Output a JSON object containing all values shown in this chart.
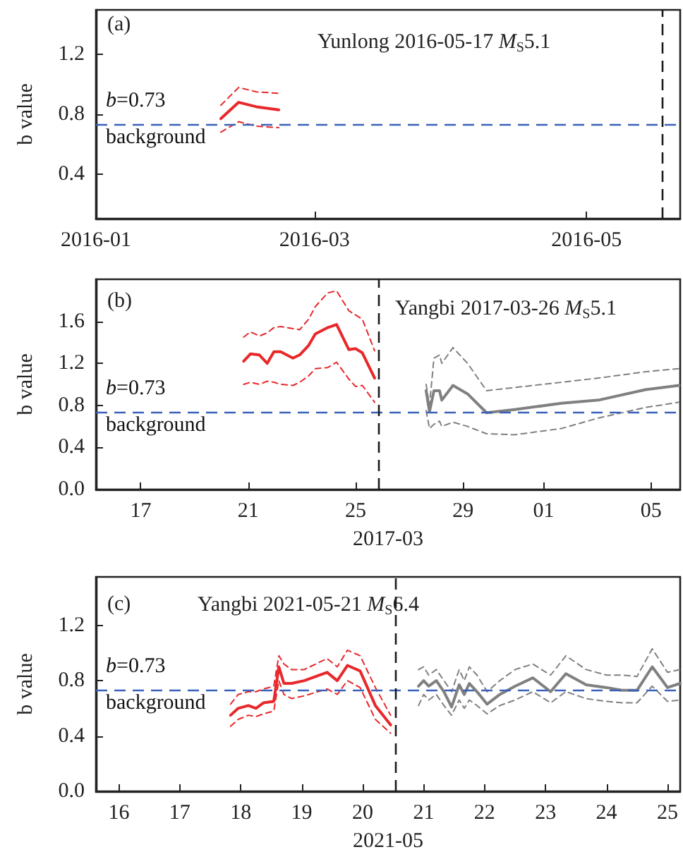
{
  "chart_data": [
    {
      "type": "line",
      "title": "Yunlong 2016-05-17 M$_{S}$5.1",
      "ylabel": "b value",
      "annotations": [
        "(a)"
      ],
      "xlim": [
        "2016-01-12",
        "2016-05-22"
      ],
      "xticks": [
        {
          "value": "2016-01-12",
          "label": "2016-01"
        },
        {
          "value": "2016-03-01",
          "label": "2016-03"
        },
        {
          "value": "2016-05-01",
          "label": "2016-05"
        }
      ],
      "ylim": [
        0.1,
        1.5
      ],
      "yticks": [
        0.4,
        0.8,
        1.2
      ],
      "marker": "none",
      "line_style": "solid",
      "grid": false,
      "series": [
        {
          "color": "#e8282b",
          "x": [
            "2016-02-09",
            "2016-02-13",
            "2016-02-17",
            "2016-02-22"
          ],
          "values": [
            0.77,
            0.88,
            0.85,
            0.83
          ]
        },
        {
          "color": "#e8282b",
          "line_style": "dashed",
          "x": [
            "2016-02-09",
            "2016-02-13",
            "2016-02-17",
            "2016-02-22"
          ],
          "values": [
            0.86,
            0.98,
            0.95,
            0.94
          ]
        },
        {
          "color": "#e8282b",
          "line_style": "dashed",
          "x": [
            "2016-02-09",
            "2016-02-13",
            "2016-02-17",
            "2016-02-22"
          ],
          "values": [
            0.68,
            0.75,
            0.72,
            0.71
          ]
        }
      ],
      "ref_lines": [
        {
          "axis": "y",
          "value": 0.73,
          "label": "b=0.73\nbackground",
          "color": "#3a62b8",
          "line_style": "dashed"
        },
        {
          "axis": "x",
          "value": "2016-05-18",
          "color": "#1a1a1a",
          "line_style": "dashed"
        }
      ]
    },
    {
      "type": "line",
      "title": "Yangbi 2017-03-26 M$_{S}$5.1",
      "xlabel": "2017-03",
      "ylabel": "b value",
      "annotations": [
        "(b)"
      ],
      "xlim": [
        "2017-03-15T08:00",
        "2017-04-06T02:00"
      ],
      "xticks": [
        {
          "value": "2017-03-17",
          "label": "17"
        },
        {
          "value": "2017-03-21",
          "label": "21"
        },
        {
          "value": "2017-03-25",
          "label": "25"
        },
        {
          "value": "2017-03-29",
          "label": "29"
        },
        {
          "value": "2017-04-01",
          "label": "01"
        },
        {
          "value": "2017-04-05",
          "label": "05"
        }
      ],
      "ylim": [
        0,
        2.0
      ],
      "yticks": [
        {
          "value": 0,
          "label": "0.0"
        },
        0.4,
        0.8,
        1.2,
        1.6
      ],
      "marker": "none",
      "line_style": "solid",
      "grid": false,
      "series": [
        {
          "color": "#e8282b",
          "x": [
            "2017-03-20T20:00",
            "2017-03-21T02:00",
            "2017-03-21T10:00",
            "2017-03-21T17:00",
            "2017-03-21T23:00",
            "2017-03-22T05:00",
            "2017-03-22T16:00",
            "2017-03-22T22:00",
            "2017-03-23T06:00",
            "2017-03-23T12:00",
            "2017-03-23T23:00",
            "2017-03-24T07:00",
            "2017-03-24T18:00",
            "2017-03-25T00:00",
            "2017-03-25T06:00",
            "2017-03-25T17:00"
          ],
          "values": [
            1.22,
            1.29,
            1.28,
            1.2,
            1.31,
            1.31,
            1.25,
            1.28,
            1.37,
            1.48,
            1.54,
            1.57,
            1.33,
            1.34,
            1.3,
            1.06
          ]
        },
        {
          "color": "#e8282b",
          "line_style": "dashed",
          "x": [
            "2017-03-20T20:00",
            "2017-03-21T02:00",
            "2017-03-21T10:00",
            "2017-03-21T17:00",
            "2017-03-21T23:00",
            "2017-03-22T05:00",
            "2017-03-22T16:00",
            "2017-03-22T22:00",
            "2017-03-23T06:00",
            "2017-03-23T12:00",
            "2017-03-23T23:00",
            "2017-03-24T07:00",
            "2017-03-24T18:00",
            "2017-03-25T00:00",
            "2017-03-25T06:00",
            "2017-03-25T17:00"
          ],
          "values": [
            1.45,
            1.5,
            1.46,
            1.49,
            1.54,
            1.55,
            1.53,
            1.52,
            1.62,
            1.74,
            1.87,
            1.89,
            1.7,
            1.66,
            1.62,
            1.32
          ]
        },
        {
          "color": "#e8282b",
          "line_style": "dashed",
          "x": [
            "2017-03-20T20:00",
            "2017-03-21T02:00",
            "2017-03-21T10:00",
            "2017-03-21T17:00",
            "2017-03-21T23:00",
            "2017-03-22T05:00",
            "2017-03-22T16:00",
            "2017-03-22T22:00",
            "2017-03-23T06:00",
            "2017-03-23T12:00",
            "2017-03-23T23:00",
            "2017-03-24T07:00",
            "2017-03-24T18:00",
            "2017-03-25T00:00",
            "2017-03-25T06:00",
            "2017-03-25T17:00"
          ],
          "values": [
            1.0,
            1.02,
            1.0,
            1.03,
            1.02,
            1.0,
            0.99,
            1.02,
            1.08,
            1.15,
            1.16,
            1.21,
            1.05,
            0.98,
            0.99,
            0.83
          ]
        },
        {
          "color": "#808080",
          "x": [
            "2017-03-27T15:00",
            "2017-03-27T18:00",
            "2017-03-27T22:00",
            "2017-03-28T03:00",
            "2017-03-28T05:00",
            "2017-03-28T15:00",
            "2017-03-29T04:00",
            "2017-03-29T21:00",
            "2017-03-30T22:00",
            "2017-04-01T16:00",
            "2017-04-03T01:00",
            "2017-04-04T19:00",
            "2017-04-06T01:00"
          ],
          "values": [
            0.94,
            0.74,
            0.94,
            0.94,
            0.85,
            0.99,
            0.91,
            0.73,
            0.76,
            0.82,
            0.85,
            0.95,
            0.99
          ]
        },
        {
          "color": "#808080",
          "line_style": "dashed",
          "x": [
            "2017-03-27T15:00",
            "2017-03-27T18:00",
            "2017-03-27T22:00",
            "2017-03-28T03:00",
            "2017-03-28T05:00",
            "2017-03-28T15:00",
            "2017-03-29T04:00",
            "2017-03-29T21:00",
            "2017-03-30T22:00",
            "2017-04-01T16:00",
            "2017-04-03T01:00",
            "2017-04-04T19:00",
            "2017-04-06T01:00"
          ],
          "values": [
            1.0,
            0.8,
            1.25,
            1.28,
            1.2,
            1.35,
            1.2,
            0.94,
            0.97,
            1.02,
            1.06,
            1.12,
            1.15
          ]
        },
        {
          "color": "#808080",
          "line_style": "dashed",
          "x": [
            "2017-03-27T15:00",
            "2017-03-27T18:00",
            "2017-03-27T22:00",
            "2017-03-28T03:00",
            "2017-03-28T05:00",
            "2017-03-28T15:00",
            "2017-03-29T04:00",
            "2017-03-29T21:00",
            "2017-03-30T22:00",
            "2017-04-01T16:00",
            "2017-04-03T01:00",
            "2017-04-04T19:00",
            "2017-04-06T01:00"
          ],
          "values": [
            0.75,
            0.58,
            0.62,
            0.65,
            0.6,
            0.64,
            0.6,
            0.53,
            0.52,
            0.58,
            0.68,
            0.78,
            0.83
          ]
        }
      ],
      "ref_lines": [
        {
          "axis": "y",
          "value": 0.73,
          "label": "b=0.73\nbackground",
          "color": "#3a62b8",
          "line_style": "dashed"
        },
        {
          "axis": "x",
          "value": "2017-03-25T20:00",
          "color": "#1a1a1a",
          "line_style": "dashed"
        }
      ]
    },
    {
      "type": "line",
      "title": "Yangbi 2021-05-21 M$_{S}$6.4",
      "xlabel": "2021-05",
      "ylabel": "b value",
      "annotations": [
        "(c)"
      ],
      "xlim": [
        "2021-05-15T15:00",
        "2021-05-25T05:00"
      ],
      "xticks": [
        {
          "value": "2021-05-16",
          "label": "16"
        },
        {
          "value": "2021-05-17",
          "label": "17"
        },
        {
          "value": "2021-05-18",
          "label": "18"
        },
        {
          "value": "2021-05-19",
          "label": "19"
        },
        {
          "value": "2021-05-20",
          "label": "20"
        },
        {
          "value": "2021-05-21",
          "label": "21"
        },
        {
          "value": "2021-05-22",
          "label": "22"
        },
        {
          "value": "2021-05-23",
          "label": "23"
        },
        {
          "value": "2021-05-24",
          "label": "24"
        },
        {
          "value": "2021-05-25",
          "label": "25"
        }
      ],
      "ylim": [
        0,
        1.55
      ],
      "yticks": [
        {
          "value": 0,
          "label": "0.0"
        },
        0.4,
        0.8,
        1.2
      ],
      "marker": "none",
      "line_style": "solid",
      "grid": false,
      "series": [
        {
          "color": "#e8282b",
          "x": [
            "2021-05-17T20:00",
            "2021-05-17T23:00",
            "2021-05-18T03:00",
            "2021-05-18T06:00",
            "2021-05-18T09:00",
            "2021-05-18T13:00",
            "2021-05-18T15:00",
            "2021-05-18T17:00",
            "2021-05-18T20:00",
            "2021-05-19T01:00",
            "2021-05-19T10:00",
            "2021-05-19T14:00",
            "2021-05-19T18:00",
            "2021-05-19T23:00",
            "2021-05-20T05:00",
            "2021-05-20T11:00"
          ],
          "values": [
            0.55,
            0.6,
            0.62,
            0.6,
            0.64,
            0.65,
            0.9,
            0.78,
            0.78,
            0.8,
            0.86,
            0.8,
            0.91,
            0.87,
            0.62,
            0.48
          ]
        },
        {
          "color": "#e8282b",
          "line_style": "dashed",
          "x": [
            "2021-05-17T20:00",
            "2021-05-17T23:00",
            "2021-05-18T03:00",
            "2021-05-18T06:00",
            "2021-05-18T09:00",
            "2021-05-18T13:00",
            "2021-05-18T15:00",
            "2021-05-18T17:00",
            "2021-05-18T20:00",
            "2021-05-19T01:00",
            "2021-05-19T10:00",
            "2021-05-19T14:00",
            "2021-05-19T18:00",
            "2021-05-19T23:00",
            "2021-05-20T05:00",
            "2021-05-20T11:00"
          ],
          "values": [
            0.63,
            0.7,
            0.72,
            0.72,
            0.74,
            0.76,
            0.98,
            0.92,
            0.88,
            0.88,
            0.96,
            0.9,
            1.02,
            0.98,
            0.75,
            0.55
          ]
        },
        {
          "color": "#e8282b",
          "line_style": "dashed",
          "x": [
            "2021-05-17T20:00",
            "2021-05-17T23:00",
            "2021-05-18T03:00",
            "2021-05-18T06:00",
            "2021-05-18T09:00",
            "2021-05-18T13:00",
            "2021-05-18T15:00",
            "2021-05-18T17:00",
            "2021-05-18T20:00",
            "2021-05-19T01:00",
            "2021-05-19T10:00",
            "2021-05-19T14:00",
            "2021-05-19T18:00",
            "2021-05-19T23:00",
            "2021-05-20T05:00",
            "2021-05-20T11:00"
          ],
          "values": [
            0.47,
            0.52,
            0.55,
            0.54,
            0.56,
            0.58,
            0.8,
            0.7,
            0.67,
            0.69,
            0.74,
            0.7,
            0.8,
            0.75,
            0.52,
            0.42
          ]
        },
        {
          "color": "#808080",
          "x": [
            "2021-05-20T22:00",
            "2021-05-21T00:00",
            "2021-05-21T02:00",
            "2021-05-21T05:00",
            "2021-05-21T08:00",
            "2021-05-21T11:00",
            "2021-05-21T14:00",
            "2021-05-21T16:00",
            "2021-05-21T18:00",
            "2021-05-21T21:00",
            "2021-05-22T01:00",
            "2021-05-22T06:00",
            "2021-05-22T12:00",
            "2021-05-22T19:00",
            "2021-05-23T02:00",
            "2021-05-23T08:00",
            "2021-05-23T16:00",
            "2021-05-24T00:00",
            "2021-05-24T06:00",
            "2021-05-24T12:00",
            "2021-05-24T18:00",
            "2021-05-25T00:00",
            "2021-05-25T05:00"
          ],
          "values": [
            0.76,
            0.8,
            0.76,
            0.8,
            0.72,
            0.61,
            0.77,
            0.7,
            0.78,
            0.72,
            0.63,
            0.7,
            0.76,
            0.82,
            0.72,
            0.85,
            0.77,
            0.75,
            0.73,
            0.73,
            0.9,
            0.75,
            0.78
          ]
        },
        {
          "color": "#808080",
          "line_style": "dashed",
          "x": [
            "2021-05-20T22:00",
            "2021-05-21T00:00",
            "2021-05-21T02:00",
            "2021-05-21T05:00",
            "2021-05-21T08:00",
            "2021-05-21T11:00",
            "2021-05-21T14:00",
            "2021-05-21T16:00",
            "2021-05-21T18:00",
            "2021-05-21T21:00",
            "2021-05-22T01:00",
            "2021-05-22T06:00",
            "2021-05-22T12:00",
            "2021-05-22T19:00",
            "2021-05-23T02:00",
            "2021-05-23T08:00",
            "2021-05-23T16:00",
            "2021-05-24T00:00",
            "2021-05-24T06:00",
            "2021-05-24T12:00",
            "2021-05-24T18:00",
            "2021-05-25T00:00",
            "2021-05-25T05:00"
          ],
          "values": [
            0.88,
            0.9,
            0.84,
            0.88,
            0.8,
            0.72,
            0.88,
            0.8,
            0.9,
            0.84,
            0.72,
            0.8,
            0.88,
            0.92,
            0.84,
            0.98,
            0.88,
            0.84,
            0.84,
            0.83,
            1.03,
            0.86,
            0.88
          ]
        },
        {
          "color": "#808080",
          "line_style": "dashed",
          "x": [
            "2021-05-20T22:00",
            "2021-05-21T00:00",
            "2021-05-21T02:00",
            "2021-05-21T05:00",
            "2021-05-21T08:00",
            "2021-05-21T11:00",
            "2021-05-21T14:00",
            "2021-05-21T16:00",
            "2021-05-21T18:00",
            "2021-05-21T21:00",
            "2021-05-22T01:00",
            "2021-05-22T06:00",
            "2021-05-22T12:00",
            "2021-05-22T19:00",
            "2021-05-23T02:00",
            "2021-05-23T08:00",
            "2021-05-23T16:00",
            "2021-05-24T00:00",
            "2021-05-24T06:00",
            "2021-05-24T12:00",
            "2021-05-24T18:00",
            "2021-05-25T00:00",
            "2021-05-25T05:00"
          ],
          "values": [
            0.62,
            0.7,
            0.66,
            0.7,
            0.62,
            0.55,
            0.66,
            0.6,
            0.66,
            0.62,
            0.56,
            0.62,
            0.66,
            0.72,
            0.64,
            0.72,
            0.67,
            0.65,
            0.64,
            0.64,
            0.76,
            0.65,
            0.66
          ]
        }
      ],
      "ref_lines": [
        {
          "axis": "y",
          "value": 0.73,
          "label": "b=0.73\nbackground",
          "color": "#3a62b8",
          "line_style": "dashed"
        },
        {
          "axis": "x",
          "value": "2021-05-20T13:00",
          "color": "#1a1a1a",
          "line_style": "dashed"
        }
      ]
    }
  ]
}
